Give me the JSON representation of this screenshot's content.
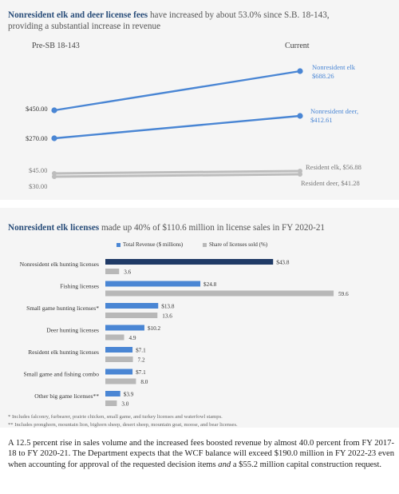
{
  "colors": {
    "accent": "#4a86d4",
    "dark": "#1f3a66",
    "gray": "#b8b8b8",
    "slope_resident": "#bdbdbd"
  },
  "slope": {
    "title_bold": "Nonresident elk and deer license fees",
    "title_rest_1": " have increased by about 53.0% since S.B. 18-143,",
    "title_rest_2": "providing a substantial increase in revenue",
    "left_header": "Pre-SB 18-143",
    "right_header": "Current",
    "labels": {
      "nr_elk_start": "$450.00",
      "nr_elk_name": "Nonresident elk",
      "nr_elk_end": "$688.26",
      "nr_deer_start": "$270.00",
      "nr_deer_name": "Nonresident deer,",
      "nr_deer_end": "$412.61",
      "r_elk_start": "$45.00",
      "r_elk_end": "Resident elk, $56.88",
      "r_deer_start": "$30.00",
      "r_deer_end": "Resident deer, $41.28"
    }
  },
  "bars": {
    "title_bold": "Nonresident elk licenses",
    "title_rest": " made up 40% of $110.6 million in license sales in FY 2020-21",
    "legend_revenue": "Total Revenue ($ millions)",
    "legend_share": "Share of licenses sold (%)",
    "footnote_1": "* Includes falconry, furbearer, prairie chicken, small game, and turkey licenses and waterfowl stamps.",
    "footnote_2": "** Includes pronghorn, mountain lion, bighorn sheep, desert sheep, mountain goat, moose, and bear licenses."
  },
  "chart_data": [
    {
      "type": "line",
      "title": "Nonresident elk and deer license fees have increased by about 53.0% since S.B. 18-143, providing a substantial increase in revenue",
      "x": [
        "Pre-SB 18-143",
        "Current"
      ],
      "series": [
        {
          "name": "Nonresident elk",
          "values": [
            450.0,
            688.26
          ]
        },
        {
          "name": "Nonresident deer",
          "values": [
            270.0,
            412.61
          ]
        },
        {
          "name": "Resident elk",
          "values": [
            45.0,
            56.88
          ]
        },
        {
          "name": "Resident deer",
          "values": [
            30.0,
            41.28
          ]
        }
      ],
      "ylim": [
        0,
        700
      ]
    },
    {
      "type": "bar",
      "title": "Nonresident elk licenses made up 40% of $110.6 million in license sales in FY 2020-21",
      "orientation": "horizontal",
      "categories": [
        "Nonresident elk hunting licenses",
        "Fishing licenses",
        "Small game hunting licenses*",
        "Deer hunting licenses",
        "Resident elk hunting licenses",
        "Small game and fishing combo",
        "Other big game licenses**"
      ],
      "series": [
        {
          "name": "Total Revenue ($ millions)",
          "values": [
            43.8,
            24.8,
            13.8,
            10.2,
            7.1,
            7.1,
            3.9
          ],
          "labels": [
            "$43.8",
            "$24.8",
            "$13.8",
            "$10.2",
            "$7.1",
            "$7.1",
            "$3.9"
          ]
        },
        {
          "name": "Share of licenses sold (%)",
          "values": [
            3.6,
            59.6,
            13.6,
            4.9,
            7.2,
            8.0,
            3.0
          ],
          "labels": [
            "3.6",
            "59.6",
            "13.6",
            "4.9",
            "7.2",
            "8.0",
            "3.0"
          ]
        }
      ],
      "xlim": [
        0,
        60
      ]
    }
  ],
  "paragraph": {
    "text_1": "A 12.5 percent rise in sales volume and the increased fees boosted revenue by almost 40.0 percent from FY 2017-18 to FY 2020-21. The Department expects that the WCF balance will exceed $190.0 million in FY 2022-23 even when accounting for approval of the requested decision items ",
    "text_italic": "and",
    "text_2": " a $55.2 million capital construction request."
  }
}
